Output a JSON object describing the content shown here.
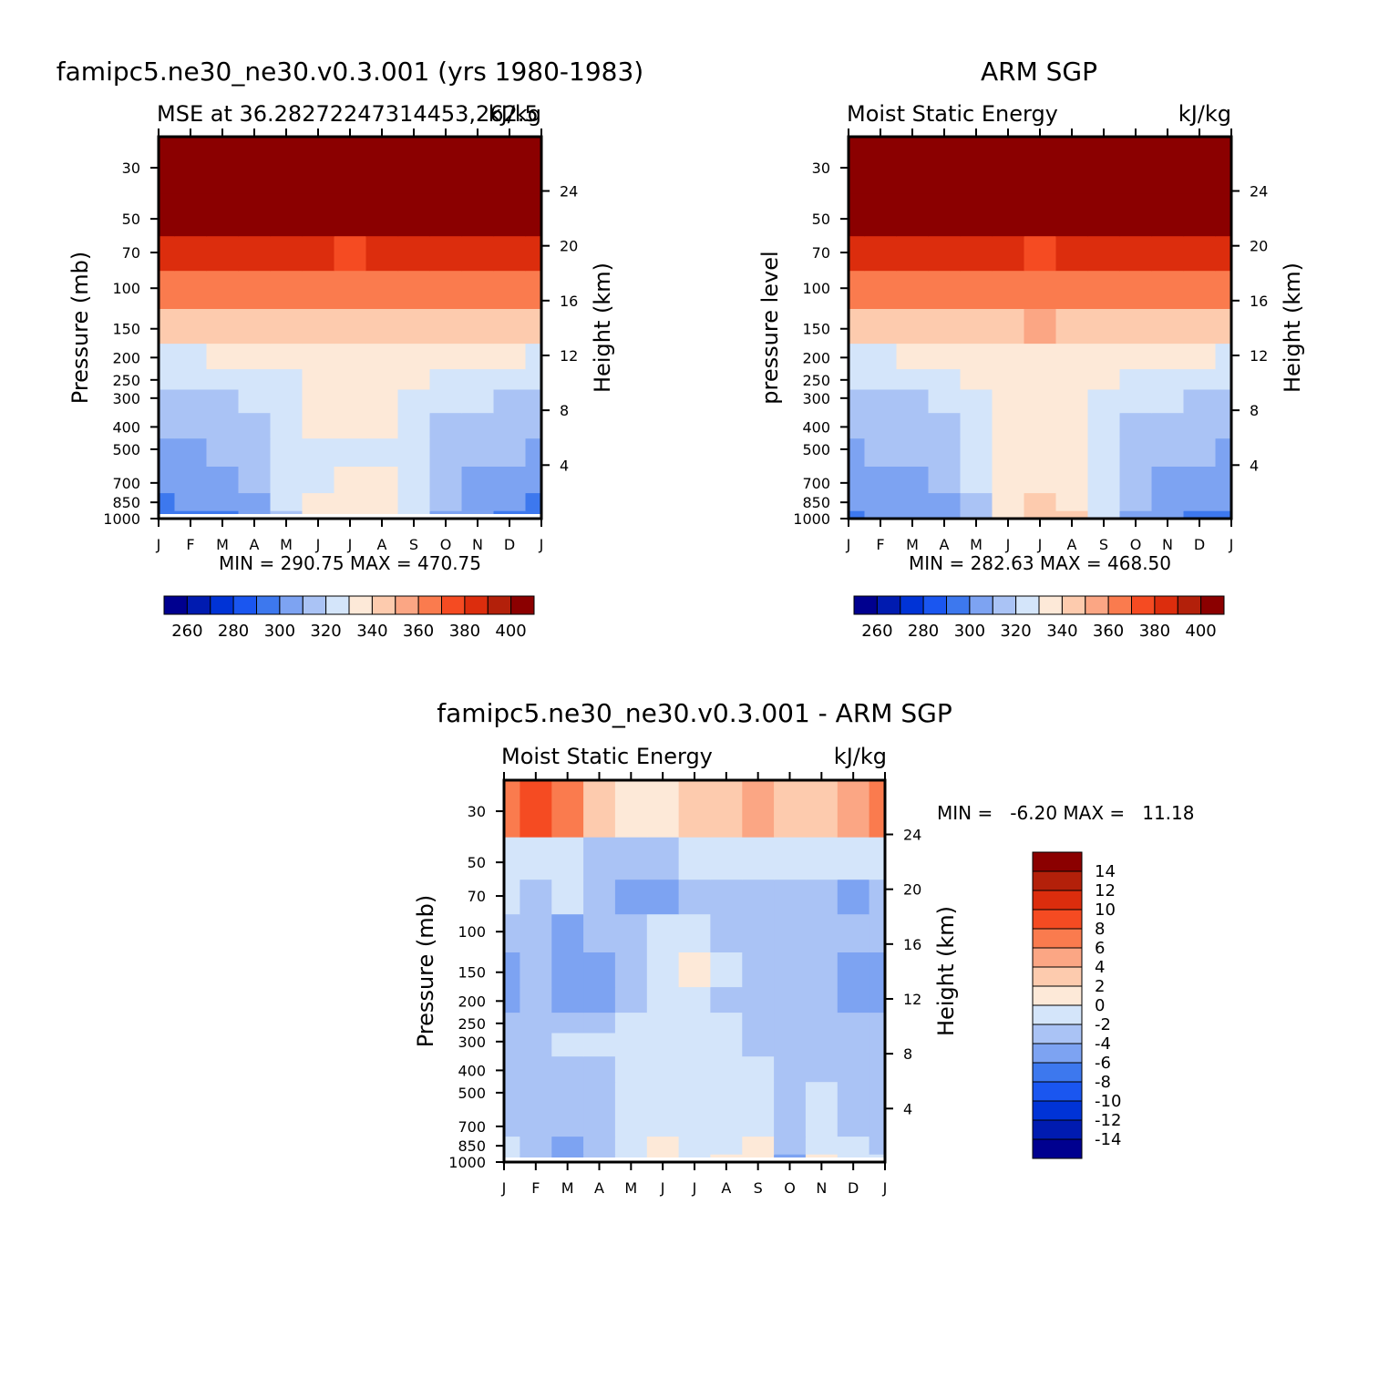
{
  "colors": {
    "mse_levels": [
      "#00008f",
      "#001bb0",
      "#0033d6",
      "#1a56f0",
      "#3d78ee",
      "#7da3f2",
      "#aac3f5",
      "#d4e5fa",
      "#fde9d8",
      "#fdcbae",
      "#fba684",
      "#fa7b4e",
      "#f54b22",
      "#dc2d0d",
      "#b3200a",
      "#8b0000"
    ],
    "diff_levels": [
      "#00008f",
      "#001bb0",
      "#0033d6",
      "#1a56f0",
      "#3d78ee",
      "#7da3f2",
      "#aac3f5",
      "#d4e5fa",
      "#fde9d8",
      "#fdcbae",
      "#fba684",
      "#fa7b4e",
      "#f54b22",
      "#dc2d0d",
      "#b3200a",
      "#8b0000"
    ]
  },
  "months": [
    "J",
    "F",
    "M",
    "A",
    "M",
    "J",
    "J",
    "A",
    "S",
    "O",
    "N",
    "D",
    "J"
  ],
  "pressure_ticks": [
    "30",
    "50",
    "70",
    "100",
    "150",
    "200",
    "250",
    "300",
    "400",
    "500",
    "700",
    "850",
    "1000"
  ],
  "height_ticks": [
    "24",
    "20",
    "16",
    "12",
    "8",
    "4"
  ],
  "panels": {
    "model": {
      "title": "famipc5.ne30_ne30.v0.3.001 (yrs 1980-1983)",
      "left_label": "MSE at 36.28272247314453,262.5",
      "units": "kJ/kg",
      "ylabel": "Pressure (mb)",
      "ylabel_right": "Height (km)",
      "minmax": "MIN = 290.75 MAX = 470.75"
    },
    "obs": {
      "title": "ARM SGP",
      "left_label": "Moist Static Energy",
      "units": "kJ/kg",
      "ylabel": "pressure level",
      "ylabel_right": "Height (km)",
      "minmax": "MIN = 282.63 MAX = 468.50"
    },
    "diff": {
      "title": "famipc5.ne30_ne30.v0.3.001 - ARM SGP",
      "left_label": "Moist Static Energy",
      "units": "kJ/kg",
      "ylabel": "Pressure (mb)",
      "ylabel_right": "Height (km)",
      "minmax": "MIN =   -6.20 MAX =   11.18"
    }
  },
  "colorbar_mse": {
    "labels": [
      "260",
      "280",
      "300",
      "320",
      "340",
      "360",
      "380",
      "400"
    ]
  },
  "colorbar_diff": {
    "labels": [
      "14",
      "12",
      "10",
      "8",
      "6",
      "4",
      "2",
      "0",
      "-2",
      "-4",
      "-6",
      "-8",
      "-10",
      "-12",
      "-14"
    ]
  },
  "chart_data": [
    {
      "type": "heatmap",
      "title": "famipc5.ne30_ne30.v0.3.001 (yrs 1980-1983)",
      "subtitle": "MSE at 36.28272247314453,262.5",
      "units": "kJ/kg",
      "xlabel": "",
      "ylabel": "Pressure (mb)",
      "ylabel_right": "Height (km)",
      "x": [
        "J",
        "F",
        "M",
        "A",
        "M",
        "J",
        "J",
        "A",
        "S",
        "O",
        "N",
        "D",
        "J"
      ],
      "y_pressure": [
        1000,
        850,
        700,
        500,
        400,
        300,
        250,
        200,
        150,
        100,
        70,
        50,
        30
      ],
      "levels": [
        260,
        270,
        280,
        290,
        300,
        310,
        320,
        330,
        340,
        350,
        360,
        370,
        380,
        390,
        400
      ],
      "values": [
        [
          296,
          298,
          299,
          305,
          318,
          337,
          339,
          339,
          320,
          308,
          304,
          297,
          296
        ],
        [
          299,
          300,
          302,
          308,
          320,
          334,
          338,
          337,
          322,
          310,
          306,
          300,
          299
        ],
        [
          304,
          305,
          306,
          310,
          321,
          329,
          332,
          331,
          322,
          312,
          308,
          305,
          304
        ],
        [
          309,
          309,
          310,
          313,
          322,
          328,
          328,
          328,
          322,
          315,
          311,
          310,
          309
        ],
        [
          312,
          312,
          313,
          316,
          324,
          331,
          331,
          330,
          324,
          318,
          314,
          313,
          312
        ],
        [
          318,
          318,
          319,
          321,
          327,
          333,
          334,
          333,
          328,
          323,
          320,
          319,
          318
        ],
        [
          322,
          322,
          323,
          325,
          329,
          335,
          335,
          335,
          330,
          326,
          324,
          322,
          322
        ],
        [
          329,
          329,
          330,
          331,
          333,
          336,
          337,
          336,
          334,
          332,
          331,
          330,
          329
        ],
        [
          346,
          346,
          346,
          346,
          347,
          348,
          348,
          348,
          347,
          346,
          346,
          346,
          346
        ],
        [
          363,
          363,
          363,
          363,
          363,
          363,
          363,
          363,
          363,
          363,
          363,
          363,
          363
        ],
        [
          385,
          384,
          383,
          382,
          381,
          380,
          379,
          380,
          381,
          382,
          383,
          384,
          385
        ],
        [
          410,
          410,
          410,
          410,
          410,
          410,
          410,
          410,
          410,
          410,
          410,
          410,
          410
        ],
        [
          450,
          450,
          450,
          450,
          450,
          450,
          450,
          450,
          450,
          450,
          450,
          450,
          450
        ]
      ],
      "min": 290.75,
      "max": 470.75
    },
    {
      "type": "heatmap",
      "title": "ARM SGP",
      "subtitle": "Moist Static Energy",
      "units": "kJ/kg",
      "xlabel": "",
      "ylabel": "pressure level",
      "ylabel_right": "Height (km)",
      "x": [
        "J",
        "F",
        "M",
        "A",
        "M",
        "J",
        "J",
        "A",
        "S",
        "O",
        "N",
        "D",
        "J"
      ],
      "y_pressure": [
        1000,
        850,
        700,
        500,
        400,
        300,
        250,
        200,
        150,
        100,
        70,
        50,
        30
      ],
      "levels": [
        260,
        270,
        280,
        290,
        300,
        310,
        320,
        330,
        340,
        350,
        360,
        370,
        380,
        390,
        400
      ],
      "values": [
        [
          298,
          300,
          302,
          306,
          316,
          338,
          342,
          341,
          322,
          308,
          303,
          299,
          298
        ],
        [
          301,
          302,
          304,
          308,
          318,
          335,
          340,
          339,
          323,
          311,
          306,
          302,
          301
        ],
        [
          305,
          306,
          307,
          310,
          320,
          330,
          335,
          333,
          322,
          313,
          309,
          306,
          305
        ],
        [
          309,
          310,
          311,
          313,
          321,
          330,
          331,
          330,
          322,
          315,
          312,
          310,
          309
        ],
        [
          312,
          313,
          314,
          316,
          324,
          332,
          333,
          332,
          324,
          318,
          315,
          313,
          312
        ],
        [
          318,
          318,
          319,
          322,
          328,
          334,
          336,
          335,
          329,
          324,
          320,
          319,
          318
        ],
        [
          322,
          322,
          323,
          326,
          330,
          336,
          337,
          336,
          331,
          327,
          324,
          322,
          322
        ],
        [
          329,
          329,
          330,
          332,
          334,
          337,
          338,
          337,
          335,
          333,
          331,
          330,
          329
        ],
        [
          346,
          346,
          346,
          347,
          347,
          349,
          350,
          349,
          348,
          347,
          346,
          346,
          346
        ],
        [
          363,
          363,
          363,
          363,
          363,
          364,
          364,
          364,
          363,
          363,
          363,
          363,
          363
        ],
        [
          388,
          387,
          386,
          385,
          383,
          381,
          379,
          380,
          382,
          384,
          386,
          387,
          388
        ],
        [
          410,
          410,
          410,
          410,
          410,
          410,
          410,
          410,
          410,
          410,
          410,
          410,
          410
        ],
        [
          450,
          450,
          450,
          450,
          450,
          450,
          450,
          450,
          450,
          450,
          450,
          450,
          450
        ]
      ],
      "min": 282.63,
      "max": 468.5
    },
    {
      "type": "heatmap",
      "title": "famipc5.ne30_ne30.v0.3.001 - ARM SGP",
      "subtitle": "Moist Static Energy",
      "units": "kJ/kg",
      "xlabel": "",
      "ylabel": "Pressure (mb)",
      "ylabel_right": "Height (km)",
      "x": [
        "J",
        "F",
        "M",
        "A",
        "M",
        "J",
        "J",
        "A",
        "S",
        "O",
        "N",
        "D",
        "J"
      ],
      "y_pressure": [
        1000,
        850,
        700,
        500,
        400,
        300,
        250,
        200,
        150,
        100,
        70,
        50,
        30
      ],
      "levels": [
        -14,
        -12,
        -10,
        -8,
        -6,
        -4,
        -2,
        0,
        2,
        4,
        6,
        8,
        10,
        12,
        14
      ],
      "values": [
        [
          -1.5,
          -2.5,
          -4.5,
          -2.5,
          -1.0,
          1.5,
          -0.5,
          0.5,
          1.5,
          -5.0,
          0.5,
          -1.0,
          -2.0
        ],
        [
          -2.0,
          -3.0,
          -5.0,
          -3.0,
          -1.2,
          0.5,
          -1.0,
          -0.5,
          0.5,
          -4.0,
          -0.5,
          -2.0,
          -2.5
        ],
        [
          -2.5,
          -3.5,
          -4.0,
          -3.0,
          -1.5,
          -0.8,
          -1.2,
          -1.0,
          -0.6,
          -3.0,
          -1.5,
          -2.5,
          -3.0
        ],
        [
          -2.8,
          -3.0,
          -2.5,
          -2.5,
          -1.2,
          -0.5,
          -0.8,
          -0.8,
          -0.6,
          -3.0,
          -2.0,
          -3.0,
          -3.5
        ],
        [
          -3.0,
          -2.8,
          -2.2,
          -2.2,
          -1.0,
          -0.6,
          -0.6,
          -0.8,
          -1.2,
          -3.0,
          -2.5,
          -3.0,
          -3.0
        ],
        [
          -3.0,
          -2.6,
          -2.0,
          -2.0,
          -1.5,
          -0.8,
          -0.8,
          -1.5,
          -2.5,
          -3.5,
          -2.2,
          -3.0,
          -3.0
        ],
        [
          -3.5,
          -3.0,
          -2.5,
          -2.6,
          -1.8,
          -1.0,
          -1.2,
          -2.0,
          -3.0,
          -3.5,
          -2.5,
          -3.2,
          -3.5
        ],
        [
          -4.5,
          -3.8,
          -4.2,
          -5.0,
          -3.0,
          -1.2,
          -1.0,
          -2.2,
          -3.0,
          -3.0,
          -3.0,
          -4.5,
          -4.5
        ],
        [
          -5.0,
          -4.0,
          -6.0,
          -5.5,
          -3.5,
          -0.8,
          0.5,
          -1.0,
          -2.5,
          -2.5,
          -3.0,
          -5.0,
          -5.0
        ],
        [
          -3.5,
          -3.0,
          -4.5,
          -4.0,
          -3.0,
          -2.0,
          -2.0,
          -2.5,
          -2.5,
          -2.5,
          -3.0,
          -4.0,
          -4.0
        ],
        [
          -1.5,
          -2.5,
          -1.5,
          -3.5,
          -5.0,
          -4.5,
          -3.5,
          -3.0,
          -3.5,
          -3.0,
          -3.0,
          -5.0,
          -4.0
        ],
        [
          -1.0,
          -1.5,
          -1.5,
          -2.5,
          -3.5,
          -2.5,
          -2.0,
          -1.8,
          -1.5,
          -1.5,
          -1.5,
          -2.0,
          -2.0
        ],
        [
          7.0,
          8.5,
          6.5,
          3.5,
          1.5,
          1.5,
          3.0,
          3.5,
          4.5,
          2.5,
          2.0,
          4.0,
          6.5
        ]
      ],
      "min": -6.2,
      "max": 11.18
    }
  ]
}
